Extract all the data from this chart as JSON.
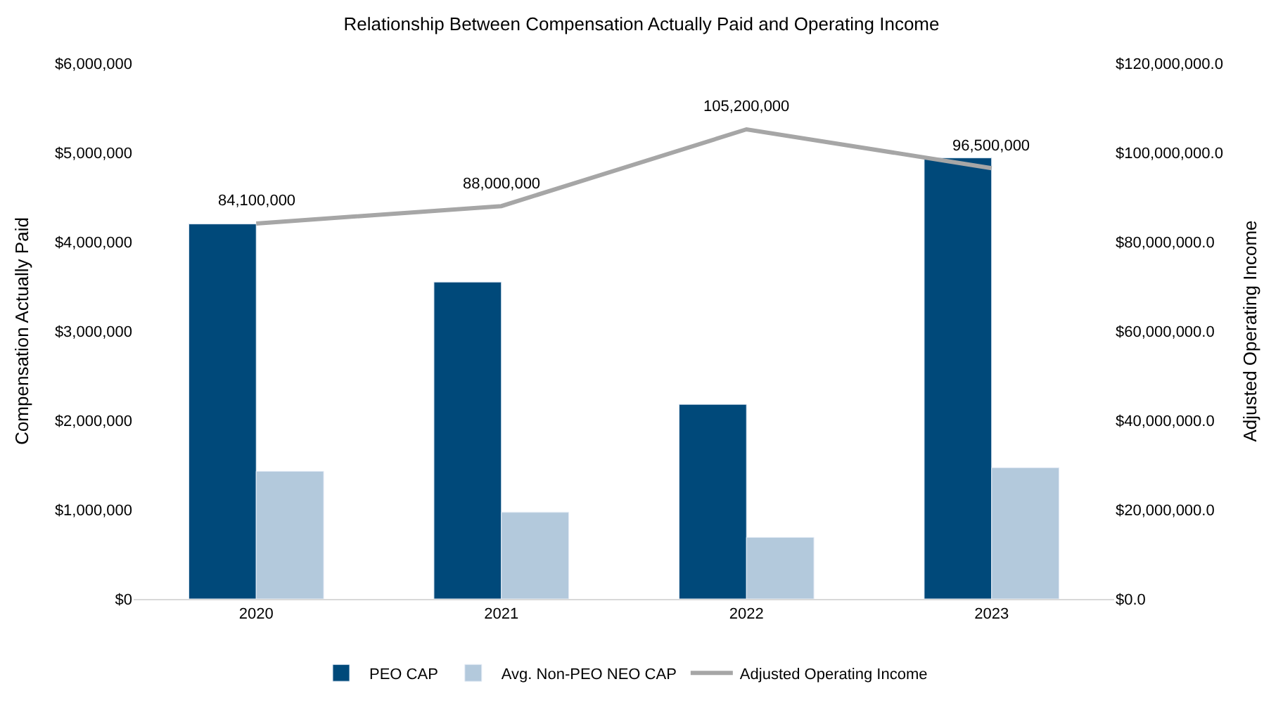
{
  "chart_data": {
    "type": "bar",
    "title": "Relationship Between Compensation Actually Paid and Operating Income",
    "categories": [
      "2020",
      "2021",
      "2022",
      "2023"
    ],
    "ylabel": "Compensation Actually Paid",
    "y2label": "Adjusted Operating Income",
    "ylim": [
      0,
      6000000
    ],
    "yticks": [
      {
        "value": 0,
        "label": "$0"
      },
      {
        "value": 1000000,
        "label": "$1,000,000"
      },
      {
        "value": 2000000,
        "label": "$2,000,000"
      },
      {
        "value": 3000000,
        "label": "$3,000,000"
      },
      {
        "value": 4000000,
        "label": "$4,000,000"
      },
      {
        "value": 5000000,
        "label": "$5,000,000"
      },
      {
        "value": 6000000,
        "label": "$6,000,000"
      }
    ],
    "y2lim": [
      0,
      120000000
    ],
    "y2ticks": [
      {
        "value": 0,
        "label": "$0.0"
      },
      {
        "value": 20000000,
        "label": "$20,000,000.0"
      },
      {
        "value": 40000000,
        "label": "$40,000,000.0"
      },
      {
        "value": 60000000,
        "label": "$60,000,000.0"
      },
      {
        "value": 80000000,
        "label": "$80,000,000.0"
      },
      {
        "value": 100000000,
        "label": "$100,000,000.0"
      },
      {
        "value": 120000000,
        "label": "$120,000,000.0"
      }
    ],
    "series": [
      {
        "name": "PEO CAP",
        "color": "#00497a",
        "values": [
          4200000,
          3550000,
          2180000,
          4940000
        ]
      },
      {
        "name": "Avg. Non-PEO NEO CAP",
        "color": "#b3c9dc",
        "values": [
          1430000,
          970000,
          690000,
          1470000
        ]
      },
      {
        "name": "Adjusted Operating Income",
        "type": "line",
        "axis": "y2",
        "color": "#a6a6a6",
        "values": [
          84100000,
          88000000,
          105200000,
          96500000
        ],
        "value_labels": [
          "84,100,000",
          "88,000,000",
          "105,200,000",
          "96,500,000"
        ]
      }
    ],
    "legend": "bottom",
    "marker": "none"
  }
}
